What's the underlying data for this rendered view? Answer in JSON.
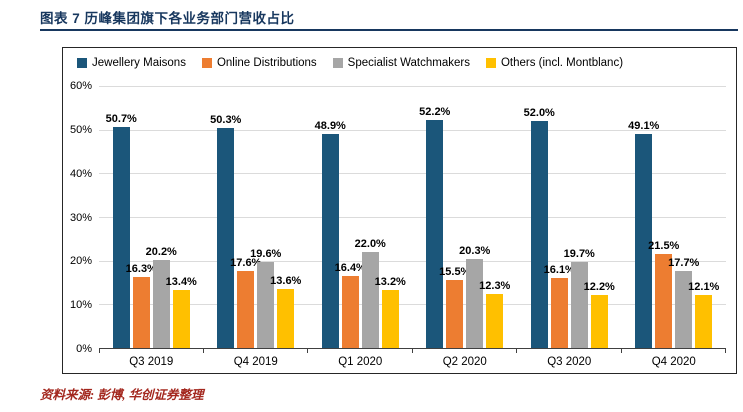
{
  "page": {
    "title": "图表 7  历峰集团旗下各业务部门营收占比",
    "source": "资料来源: 彭博, 华创证券整理"
  },
  "colors": {
    "title_navy": "#17375E",
    "source_red": "#A3271E",
    "gridline": "#DBDBDB",
    "axis": "#404040"
  },
  "chart_data": {
    "type": "bar",
    "title": "历峰集团旗下各业务部门营收占比",
    "categories": [
      "Q3 2019",
      "Q4 2019",
      "Q1 2020",
      "Q2 2020",
      "Q3 2020",
      "Q4 2020"
    ],
    "series": [
      {
        "name": "Jewellery Maisons",
        "color": "#1B567A",
        "values": [
          50.7,
          50.3,
          48.9,
          52.2,
          52.0,
          49.1
        ]
      },
      {
        "name": "Online Distributions",
        "color": "#ED7D31",
        "values": [
          16.3,
          17.6,
          16.4,
          15.5,
          16.1,
          21.5
        ]
      },
      {
        "name": "Specialist Watchmakers",
        "color": "#A6A6A6",
        "values": [
          20.2,
          19.6,
          22.0,
          20.3,
          19.7,
          17.7
        ]
      },
      {
        "name": "Others (incl. Montblanc)",
        "color": "#FFC000",
        "values": [
          13.4,
          13.6,
          13.2,
          12.3,
          12.2,
          12.1
        ]
      }
    ],
    "xlabel": "",
    "ylabel": "",
    "ylim": [
      0,
      60
    ],
    "ytick_labels": [
      "0%",
      "10%",
      "20%",
      "30%",
      "40%",
      "50%",
      "60%"
    ],
    "grid": true,
    "legend_position": "top-inside",
    "value_label_format": "one_decimal_percent"
  }
}
